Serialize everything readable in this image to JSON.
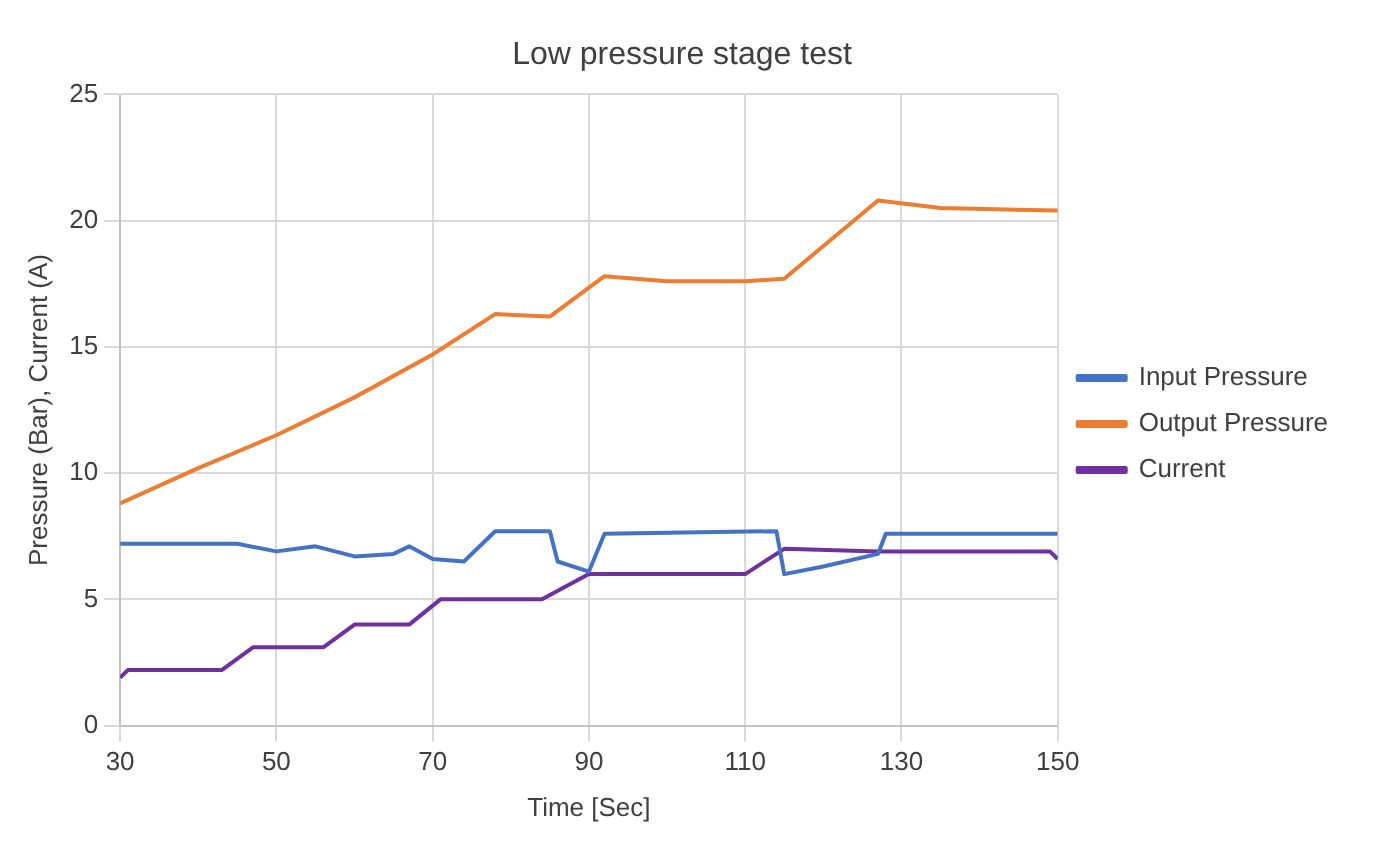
{
  "chart_data": {
    "type": "line",
    "title": "Low pressure stage test",
    "xlabel": "Time [Sec]",
    "ylabel": "Pressure (Bar), Current (A)",
    "xlim": [
      30,
      150
    ],
    "xticks": [
      30,
      50,
      70,
      90,
      110,
      130,
      150
    ],
    "ylim": [
      0,
      25
    ],
    "yticks": [
      0,
      5,
      10,
      15,
      20,
      25
    ],
    "grid": true,
    "legend": "right",
    "marker": "none",
    "line_style": "solid",
    "series": [
      {
        "name": "Input Pressure",
        "color": "#4472c4",
        "x": [
          30,
          45,
          50,
          55,
          60,
          65,
          67,
          70,
          74,
          78,
          85,
          86,
          90,
          92,
          114,
          115,
          120,
          127,
          128,
          150
        ],
        "values": [
          7.2,
          7.2,
          6.9,
          7.1,
          6.7,
          6.8,
          7.1,
          6.6,
          6.5,
          7.7,
          7.7,
          6.5,
          6.1,
          7.6,
          7.7,
          6.0,
          6.3,
          6.8,
          7.6,
          7.6
        ]
      },
      {
        "name": "Output Pressure",
        "color": "#ed7d31",
        "x": [
          30,
          40,
          50,
          60,
          70,
          78,
          85,
          92,
          100,
          110,
          115,
          127,
          135,
          150
        ],
        "values": [
          8.8,
          10.2,
          11.5,
          13,
          14.7,
          16.3,
          16.2,
          17.8,
          17.6,
          17.6,
          17.7,
          20.8,
          20.5,
          20.4
        ]
      },
      {
        "name": "Current",
        "color": "#7030a0",
        "x": [
          30,
          31,
          43,
          47,
          56,
          60,
          67,
          71,
          84,
          90,
          110,
          115,
          127,
          149,
          150
        ],
        "values": [
          1.9,
          2.2,
          2.2,
          3.1,
          3.1,
          4.0,
          4.0,
          5.0,
          5.0,
          6.0,
          6.0,
          7.0,
          6.9,
          6.9,
          6.6
        ]
      }
    ]
  }
}
